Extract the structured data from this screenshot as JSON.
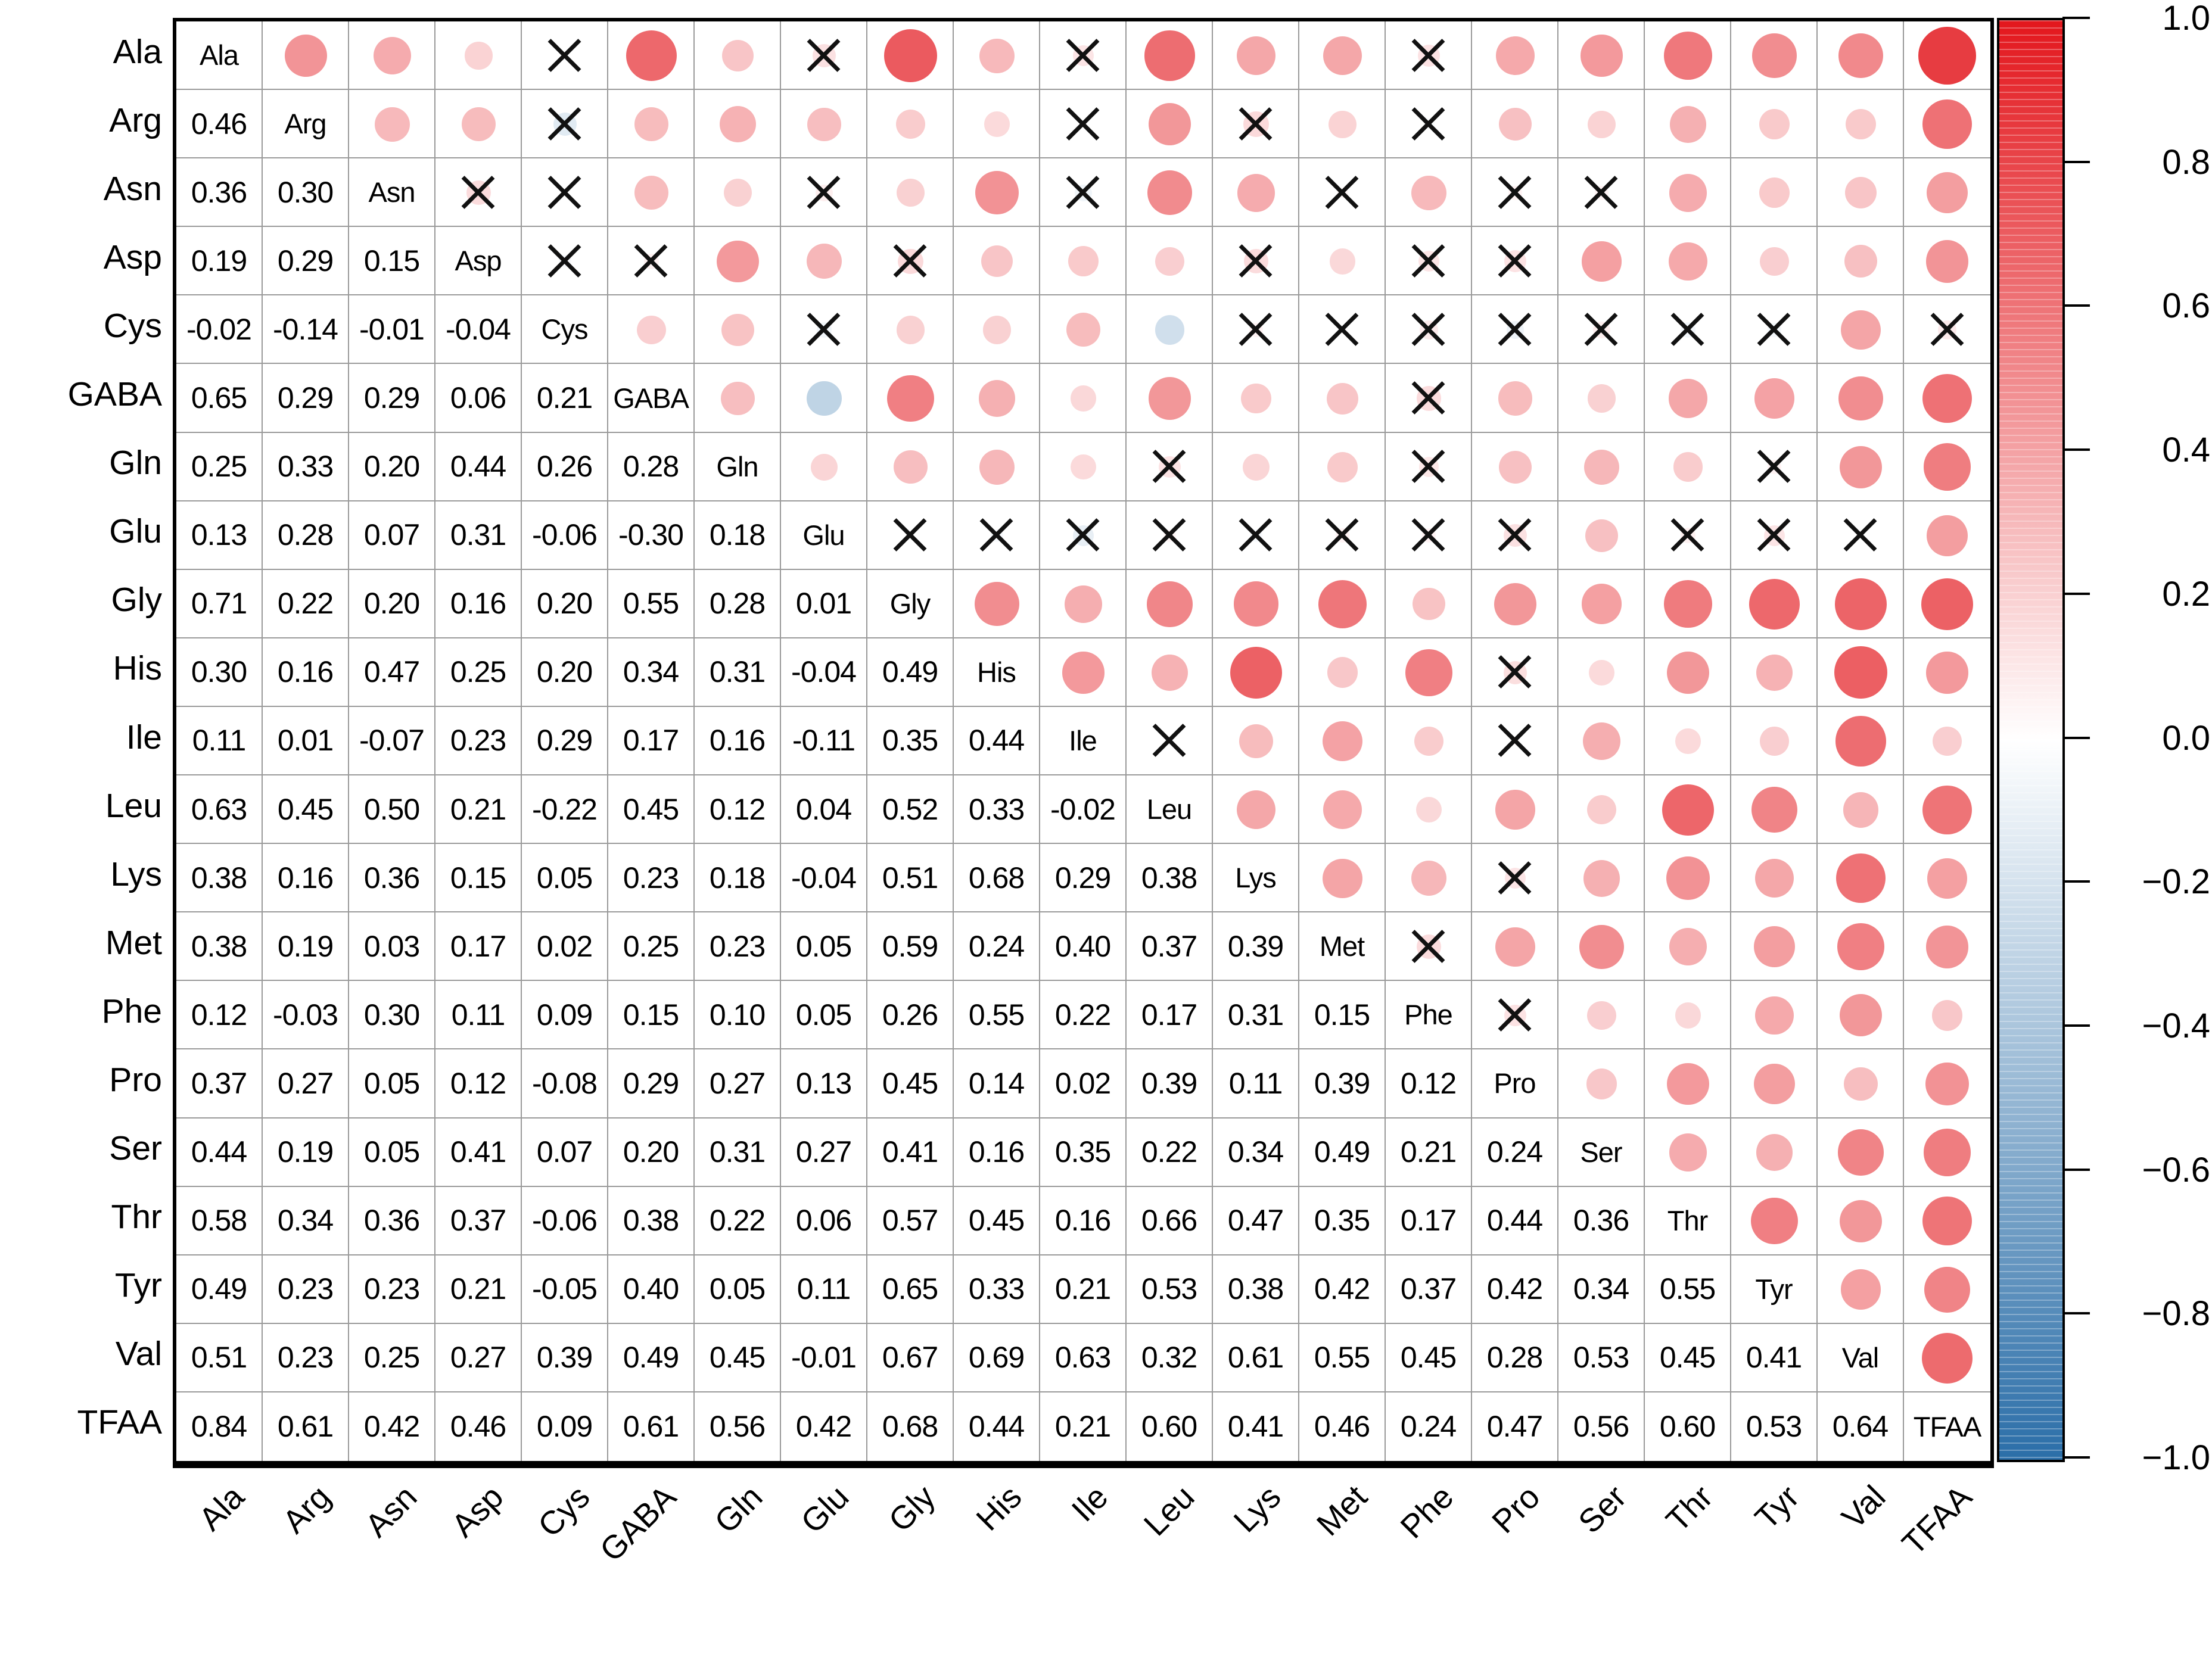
{
  "chart_data": {
    "type": "heatmap",
    "subtype": "correlation-matrix-corrplot",
    "title": "",
    "legend_position": "right-colorbar",
    "grid": true,
    "labels": [
      "Ala",
      "Arg",
      "Asn",
      "Asp",
      "Cys",
      "GABA",
      "Gln",
      "Glu",
      "Gly",
      "His",
      "Ile",
      "Leu",
      "Lys",
      "Met",
      "Phe",
      "Pro",
      "Ser",
      "Thr",
      "Tyr",
      "Val",
      "TFAA"
    ],
    "lower_triangle_values": [
      [],
      [
        0.46
      ],
      [
        0.36,
        0.3
      ],
      [
        0.19,
        0.29,
        0.15
      ],
      [
        -0.02,
        -0.14,
        -0.01,
        -0.04
      ],
      [
        0.65,
        0.29,
        0.29,
        0.06,
        0.21
      ],
      [
        0.25,
        0.33,
        0.2,
        0.44,
        0.26,
        0.28
      ],
      [
        0.13,
        0.28,
        0.07,
        0.31,
        -0.06,
        -0.3,
        0.18
      ],
      [
        0.71,
        0.22,
        0.2,
        0.16,
        0.2,
        0.55,
        0.28,
        0.01
      ],
      [
        0.3,
        0.16,
        0.47,
        0.25,
        0.2,
        0.34,
        0.31,
        -0.04,
        0.49
      ],
      [
        0.11,
        0.01,
        -0.07,
        0.23,
        0.29,
        0.17,
        0.16,
        -0.11,
        0.35,
        0.44
      ],
      [
        0.63,
        0.45,
        0.5,
        0.21,
        -0.22,
        0.45,
        0.12,
        0.04,
        0.52,
        0.33,
        -0.02
      ],
      [
        0.38,
        0.16,
        0.36,
        0.15,
        0.05,
        0.23,
        0.18,
        -0.04,
        0.51,
        0.68,
        0.29,
        0.38
      ],
      [
        0.38,
        0.19,
        0.03,
        0.17,
        0.02,
        0.25,
        0.23,
        0.05,
        0.59,
        0.24,
        0.4,
        0.37,
        0.39
      ],
      [
        0.12,
        -0.03,
        0.3,
        0.11,
        0.09,
        0.15,
        0.1,
        0.05,
        0.26,
        0.55,
        0.22,
        0.17,
        0.31,
        0.15
      ],
      [
        0.37,
        0.27,
        0.05,
        0.12,
        -0.08,
        0.29,
        0.27,
        0.13,
        0.45,
        0.14,
        0.02,
        0.39,
        0.11,
        0.39,
        0.12
      ],
      [
        0.44,
        0.19,
        0.05,
        0.41,
        0.07,
        0.2,
        0.31,
        0.27,
        0.41,
        0.16,
        0.35,
        0.22,
        0.34,
        0.49,
        0.21,
        0.24
      ],
      [
        0.58,
        0.34,
        0.36,
        0.37,
        -0.06,
        0.38,
        0.22,
        0.06,
        0.57,
        0.45,
        0.16,
        0.66,
        0.47,
        0.35,
        0.17,
        0.44,
        0.36
      ],
      [
        0.49,
        0.23,
        0.23,
        0.21,
        -0.05,
        0.4,
        0.05,
        0.11,
        0.65,
        0.33,
        0.21,
        0.53,
        0.38,
        0.42,
        0.37,
        0.42,
        0.34,
        0.55
      ],
      [
        0.51,
        0.23,
        0.25,
        0.27,
        0.39,
        0.49,
        0.45,
        -0.01,
        0.67,
        0.69,
        0.63,
        0.32,
        0.61,
        0.55,
        0.45,
        0.28,
        0.53,
        0.45,
        0.41
      ],
      [
        0.84,
        0.61,
        0.42,
        0.46,
        0.09,
        0.61,
        0.56,
        0.42,
        0.68,
        0.44,
        0.21,
        0.6,
        0.41,
        0.46,
        0.24,
        0.47,
        0.56,
        0.6,
        0.53,
        0.64
      ]
    ],
    "insignificant_pairs_x_marks": [
      [
        0,
        4
      ],
      [
        0,
        7
      ],
      [
        0,
        10
      ],
      [
        0,
        14
      ],
      [
        1,
        4
      ],
      [
        1,
        10
      ],
      [
        1,
        12
      ],
      [
        1,
        14
      ],
      [
        2,
        3
      ],
      [
        2,
        4
      ],
      [
        2,
        7
      ],
      [
        2,
        10
      ],
      [
        2,
        13
      ],
      [
        2,
        15
      ],
      [
        2,
        16
      ],
      [
        3,
        4
      ],
      [
        3,
        5
      ],
      [
        3,
        8
      ],
      [
        3,
        12
      ],
      [
        3,
        14
      ],
      [
        3,
        15
      ],
      [
        4,
        7
      ],
      [
        4,
        12
      ],
      [
        4,
        13
      ],
      [
        4,
        14
      ],
      [
        4,
        15
      ],
      [
        4,
        16
      ],
      [
        4,
        17
      ],
      [
        4,
        18
      ],
      [
        4,
        20
      ],
      [
        5,
        14
      ],
      [
        6,
        11
      ],
      [
        6,
        14
      ],
      [
        6,
        18
      ],
      [
        7,
        8
      ],
      [
        7,
        9
      ],
      [
        7,
        10
      ],
      [
        7,
        11
      ],
      [
        7,
        12
      ],
      [
        7,
        13
      ],
      [
        7,
        14
      ],
      [
        7,
        15
      ],
      [
        7,
        17
      ],
      [
        7,
        18
      ],
      [
        7,
        19
      ],
      [
        9,
        15
      ],
      [
        10,
        11
      ],
      [
        10,
        15
      ],
      [
        12,
        15
      ],
      [
        13,
        14
      ],
      [
        14,
        15
      ]
    ],
    "value_decimals": 2,
    "colorbar": {
      "range": [
        -1,
        1
      ],
      "ticks": [
        "1.0",
        "0.8",
        "0.6",
        "0.4",
        "0.2",
        "0.0",
        "−0.2",
        "−0.4",
        "−0.6",
        "−0.8",
        "−1.0"
      ],
      "max_color": "#e3171d",
      "mid_color": "#ffffff",
      "min_color": "#2b6ea8"
    }
  }
}
